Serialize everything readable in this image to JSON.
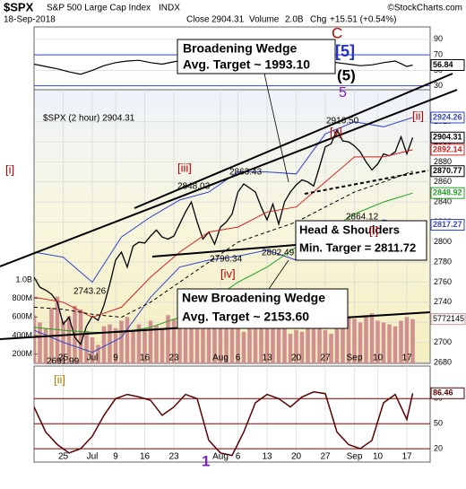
{
  "header": {
    "symbol": "$SPX",
    "name": "S&P 500 Large Cap Index",
    "exchange": "INDX",
    "source": "©StockCharts.com",
    "date": "18-Sep-2018",
    "close_label": "Close",
    "close": 2904.31,
    "volume_label": "Volume",
    "volume": "2.0B",
    "chg_label": "Chg",
    "chg": "+15.51 (+0.54%)"
  },
  "annotations": {
    "bw_title": "Broadening Wedge",
    "bw_target": "Avg. Target ~ 1993.10",
    "hs_title": "Head & Shoulders",
    "hs_target": "Min. Targer = 2811.72",
    "nbw_title": "New Broadening Wedge",
    "nbw_target": "Avg. Target ~ 2153.60",
    "c": "C",
    "w5b": "[5]",
    "w5p": "(5)",
    "w5": "5",
    "v": "[v]",
    "ii_top": "[ii]",
    "iii": "[iii]",
    "iv": "[iv]",
    "i_mid": "[i]",
    "i_left": "[i]",
    "ii_bottom": "[ii]",
    "one": "1",
    "p2916": "2916.50",
    "p2863": "2863.43",
    "p2848": "2848.03",
    "p2796": "2796.34",
    "p2802": "2802.49",
    "p2864": "2864.12",
    "p2743": "2743.26",
    "p2691": "2691.99"
  },
  "chart_data": [
    {
      "type": "line",
      "xlim": [
        -5,
        63
      ],
      "ylim": [
        25,
        106
      ],
      "yticks": [
        90,
        70,
        50,
        30
      ],
      "grid": true,
      "ref_lines": [
        70,
        30
      ],
      "ref_color": "#3344cc",
      "series": [
        {
          "color": "#000000",
          "tag": true,
          "x": [
            -5,
            -3,
            -1,
            1,
            3,
            5,
            7,
            9,
            11,
            13,
            15,
            17,
            19,
            21,
            23,
            25,
            27,
            29,
            31,
            33,
            35,
            37,
            39,
            41,
            43,
            45,
            47,
            49,
            51,
            53,
            55,
            57,
            59,
            60
          ],
          "values": [
            58,
            55,
            52,
            48,
            45,
            50,
            56,
            60,
            62,
            63,
            60,
            58,
            61,
            64,
            62,
            60,
            57,
            55,
            56,
            58,
            60,
            62,
            64,
            66,
            65,
            62,
            60,
            58,
            56,
            57,
            60,
            62,
            55,
            56.84
          ]
        }
      ]
    },
    {
      "type": "line",
      "legend": "$SPX (2 hour) 2904.31",
      "xlim": [
        -5,
        63
      ],
      "ylim": [
        2679,
        2952
      ],
      "yticks": [
        2920,
        2900,
        2880,
        2860,
        2840,
        2820,
        2800,
        2780,
        2760,
        2740,
        2720,
        2700,
        2680
      ],
      "grid": true,
      "xticks": [
        {
          "value": 0,
          "label": "25"
        },
        {
          "value": 5,
          "label": "Jul"
        },
        {
          "value": 9,
          "label": "9"
        },
        {
          "value": 14,
          "label": "16"
        },
        {
          "value": 19,
          "label": "23"
        },
        {
          "value": 27,
          "label": "Aug"
        },
        {
          "value": 30,
          "label": "6"
        },
        {
          "value": 35,
          "label": "13"
        },
        {
          "value": 40,
          "label": "20"
        },
        {
          "value": 45,
          "label": "27"
        },
        {
          "value": 50,
          "label": "Sep"
        },
        {
          "value": 54,
          "label": "10"
        },
        {
          "value": 59,
          "label": "17"
        }
      ],
      "x": [
        -5,
        -4,
        -3,
        -2,
        -1,
        0,
        1,
        2,
        3,
        4,
        5,
        6,
        7,
        8,
        9,
        10,
        11,
        12,
        13,
        14,
        15,
        16,
        17,
        18,
        19,
        20,
        21,
        22,
        23,
        24,
        25,
        26,
        27,
        28,
        29,
        30,
        31,
        32,
        33,
        34,
        35,
        36,
        37,
        38,
        39,
        40,
        41,
        42,
        43,
        44,
        45,
        46,
        47,
        48,
        49,
        50,
        51,
        52,
        53,
        54,
        55,
        56,
        57,
        58,
        59,
        60
      ],
      "volume": {
        "color": "#d09090",
        "tag": 5772145,
        "ylim": [
          100000000,
          3050000000
        ],
        "yticks": [
          {
            "value": 1000000000,
            "label": "1.0B"
          },
          {
            "value": 800000000,
            "label": "800M"
          },
          {
            "value": 600000000,
            "label": "600M"
          },
          {
            "value": 400000000,
            "label": "400M"
          },
          {
            "value": 200000000,
            "label": "200M"
          }
        ],
        "values": [
          620000000,
          540000000,
          480000000,
          700000000,
          820000000,
          560000000,
          610000000,
          720000000,
          680000000,
          450000000,
          380000000,
          300000000,
          500000000,
          520000000,
          480000000,
          560000000,
          600000000,
          450000000,
          520000000,
          480000000,
          560000000,
          510000000,
          470000000,
          620000000,
          580000000,
          520000000,
          540000000,
          600000000,
          640000000,
          700000000,
          560000000,
          520000000,
          680000000,
          600000000,
          480000000,
          500000000,
          440000000,
          520000000,
          480000000,
          560000000,
          640000000,
          520000000,
          600000000,
          480000000,
          420000000,
          460000000,
          440000000,
          500000000,
          480000000,
          520000000,
          460000000,
          420000000,
          520000000,
          560000000,
          600000000,
          580000000,
          540000000,
          620000000,
          640000000,
          560000000,
          540000000,
          520000000,
          500000000,
          560000000,
          600000000,
          577214500
        ]
      },
      "series": [
        {
          "color": "#000000",
          "width": 1.3,
          "values": [
            2765,
            2755,
            2752,
            2748,
            2740,
            2718,
            2725,
            2705,
            2698,
            2716,
            2726,
            2722,
            2737,
            2758,
            2782,
            2790,
            2775,
            2796,
            2800,
            2799,
            2806,
            2812,
            2805,
            2803,
            2806,
            2818,
            2830,
            2840,
            2820,
            2803,
            2810,
            2798,
            2815,
            2820,
            2828,
            2850,
            2858,
            2854,
            2850,
            2835,
            2822,
            2838,
            2818,
            2840,
            2850,
            2857,
            2862,
            2860,
            2856,
            2875,
            2895,
            2898,
            2912,
            2901,
            2900,
            2896,
            2890,
            2880,
            2872,
            2878,
            2888,
            2886,
            2890,
            2905,
            2888,
            2904.31
          ],
          "tag": true,
          "tag_fill": "#ffffff"
        },
        {
          "color": "#3344cc",
          "width": 1,
          "tag": true,
          "x": [
            -5,
            0,
            5,
            10,
            15,
            20,
            25,
            30,
            35,
            40,
            45,
            50,
            55,
            60
          ],
          "values": [
            2790,
            2785,
            2760,
            2805,
            2825,
            2842,
            2850,
            2870,
            2870,
            2868,
            2908,
            2920,
            2915,
            2924.26
          ]
        },
        {
          "color": "#3344cc",
          "width": 1,
          "tag": true,
          "x": [
            -5,
            0,
            5,
            10,
            15,
            20,
            25,
            30,
            35,
            40,
            45,
            50,
            55,
            60
          ],
          "values": [
            2712,
            2700,
            2690,
            2705,
            2745,
            2775,
            2782,
            2786,
            2792,
            2782,
            2796,
            2812,
            2822,
            2817.27
          ]
        },
        {
          "color": "#d02020",
          "width": 1,
          "tag": true,
          "x": [
            -5,
            0,
            5,
            10,
            15,
            20,
            25,
            30,
            35,
            40,
            45,
            50,
            55,
            60
          ],
          "values": [
            2745,
            2740,
            2725,
            2735,
            2765,
            2790,
            2810,
            2815,
            2830,
            2835,
            2860,
            2885,
            2885,
            2892.14
          ]
        },
        {
          "color": "#000000",
          "width": 1,
          "dash": true,
          "tag": true,
          "x": [
            -5,
            0,
            5,
            10,
            15,
            20,
            25,
            30,
            35,
            40,
            45,
            50,
            55,
            60
          ],
          "values": [
            2735,
            2733,
            2728,
            2725,
            2740,
            2760,
            2780,
            2800,
            2810,
            2820,
            2835,
            2850,
            2860,
            2870.77
          ]
        },
        {
          "color": "#20a020",
          "width": 1,
          "tag": true,
          "x": [
            -5,
            0,
            5,
            10,
            15,
            20,
            25,
            30,
            35,
            40,
            45,
            50,
            55,
            60
          ],
          "values": [
            2715,
            2712,
            2710,
            2710,
            2715,
            2725,
            2740,
            2760,
            2775,
            2795,
            2810,
            2828,
            2840,
            2848.92
          ]
        }
      ]
    },
    {
      "type": "line",
      "xlim": [
        -5,
        63
      ],
      "ylim": [
        4,
        119
      ],
      "yticks": [
        80,
        50,
        20
      ],
      "grid": true,
      "ref_lines": [
        80,
        50,
        20
      ],
      "ref_color": "#8b0000",
      "xticks": [
        {
          "value": 0,
          "label": "25"
        },
        {
          "value": 5,
          "label": "Jul"
        },
        {
          "value": 9,
          "label": "9"
        },
        {
          "value": 14,
          "label": "16"
        },
        {
          "value": 19,
          "label": "23"
        },
        {
          "value": 27,
          "label": "Aug"
        },
        {
          "value": 30,
          "label": "6"
        },
        {
          "value": 35,
          "label": "13"
        },
        {
          "value": 40,
          "label": "20"
        },
        {
          "value": 45,
          "label": "27"
        },
        {
          "value": 50,
          "label": "Sep"
        },
        {
          "value": 54,
          "label": "10"
        },
        {
          "value": 59,
          "label": "17"
        }
      ],
      "series": [
        {
          "color": "#5a0000",
          "width": 1.5,
          "tag": true,
          "x": [
            -5,
            -3,
            -1,
            1,
            3,
            5,
            7,
            9,
            11,
            13,
            15,
            17,
            19,
            21,
            23,
            25,
            27,
            29,
            31,
            33,
            35,
            37,
            39,
            41,
            43,
            45,
            47,
            49,
            51,
            53,
            55,
            57,
            59,
            60
          ],
          "values": [
            70,
            40,
            25,
            15,
            20,
            35,
            60,
            80,
            85,
            82,
            78,
            60,
            70,
            85,
            80,
            30,
            15,
            12,
            40,
            75,
            85,
            80,
            70,
            82,
            88,
            86,
            40,
            25,
            20,
            30,
            75,
            85,
            55,
            86.46
          ]
        }
      ]
    }
  ]
}
